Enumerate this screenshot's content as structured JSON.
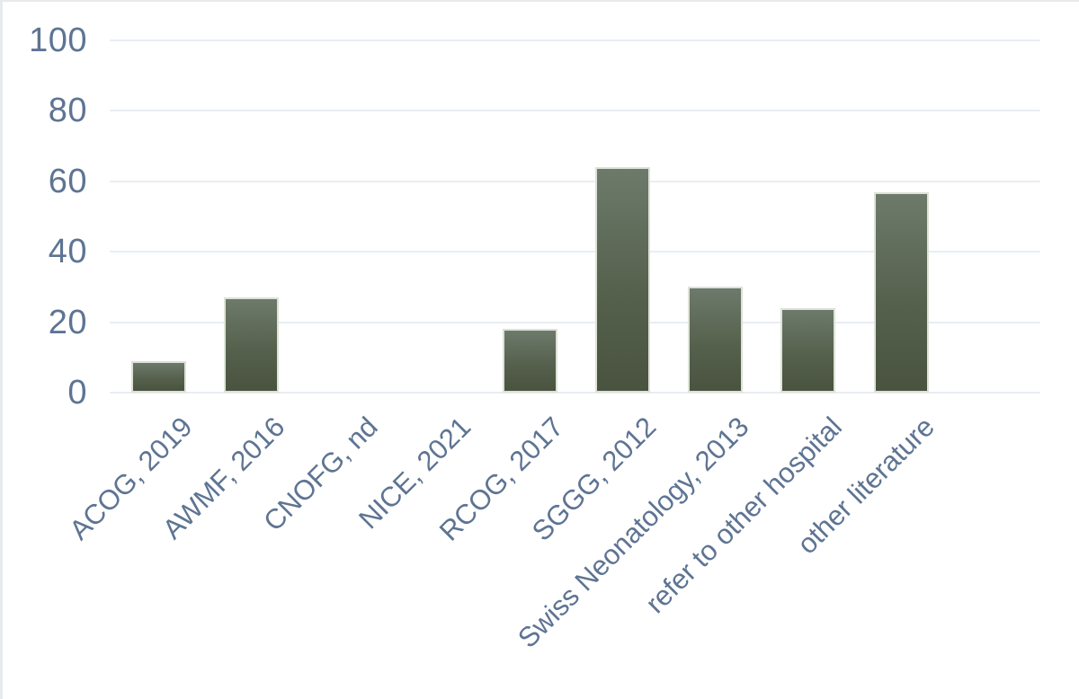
{
  "chart_data": {
    "type": "bar",
    "title": "",
    "xlabel": "",
    "ylabel": "",
    "categories": [
      "ACOG, 2019",
      "AWMF, 2016",
      "CNOFG, nd",
      "NICE, 2021",
      "RCOG, 2017",
      "SGGG, 2012",
      "Swiss Neonatology, 2013",
      "refer to other hospital",
      "other literature"
    ],
    "values": [
      9,
      27,
      0,
      0,
      18,
      64,
      30,
      24,
      57
    ],
    "ylim": [
      0,
      100
    ],
    "yticks": [
      0,
      20,
      40,
      60,
      80,
      100
    ],
    "grid": true,
    "legend": false,
    "colors": {
      "background": "#ffffff",
      "bar_gradient_top": "#6d7a6b",
      "bar_gradient_mid": "#56614d",
      "bar_gradient_bottom": "#49533f",
      "bar_border": "#dde2d7",
      "gridline": "#e8edf2",
      "tick_label": "#5e7493",
      "frame_edge": "#e7eaed"
    }
  }
}
